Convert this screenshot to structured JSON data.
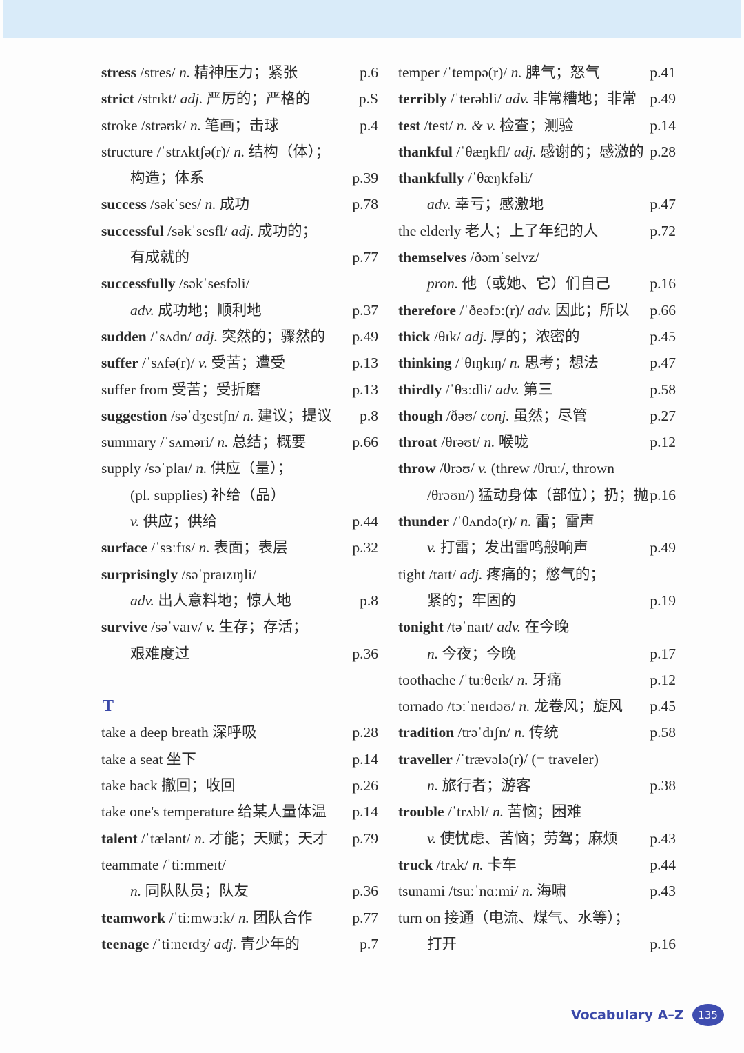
{
  "section_heading": "T",
  "footer": {
    "title": "Vocabulary A–Z",
    "page_number": "135"
  },
  "colors": {
    "accent": "#3a48a8",
    "header_band": "#d9ebf9"
  },
  "left_column": [
    {
      "w": "stress",
      "b": true,
      "ph": "/stres/",
      "pos": "n.",
      "d": "精神压力；紧张",
      "p": "p.6"
    },
    {
      "w": "strict",
      "b": true,
      "ph": "/strɪkt/",
      "pos": "adj.",
      "d": "严厉的；严格的",
      "p": "p.S"
    },
    {
      "w": "stroke",
      "ph": "/strəʊk/",
      "pos": "n.",
      "d": "笔画；击球",
      "p": "p.4"
    },
    {
      "w": "structure",
      "ph": "/ˈstrʌktʃə(r)/",
      "pos": "n.",
      "d": "结构（体）；"
    },
    {
      "ind": true,
      "d": "构造；体系",
      "p": "p.39"
    },
    {
      "w": "success",
      "b": true,
      "ph": "/səkˈses/",
      "pos": "n.",
      "d": "成功",
      "p": "p.78"
    },
    {
      "w": "successful",
      "b": true,
      "ph": "/səkˈsesfl/",
      "pos": "adj.",
      "d": "成功的；"
    },
    {
      "ind": true,
      "d": "有成就的",
      "p": "p.77"
    },
    {
      "w": "successfully",
      "b": true,
      "ph": "/səkˈsesfəli/"
    },
    {
      "ind": true,
      "pos": "adv.",
      "d": "成功地；顺利地",
      "p": "p.37"
    },
    {
      "w": "sudden",
      "b": true,
      "ph": "/ˈsʌdn/",
      "pos": "adj.",
      "d": "突然的；骤然的",
      "p": "p.49"
    },
    {
      "w": "suffer",
      "b": true,
      "ph": "/ˈsʌfə(r)/",
      "pos": "v.",
      "d": "受苦；遭受",
      "p": "p.13"
    },
    {
      "w": "suffer from",
      "d": "受苦；受折磨",
      "p": "p.13"
    },
    {
      "w": "suggestion",
      "b": true,
      "ph": "/səˈdʒestʃn/",
      "pos": "n.",
      "d": "建议；提议",
      "p": "p.8"
    },
    {
      "w": "summary",
      "ph": "/ˈsʌməri/",
      "pos": "n.",
      "d": "总结；概要",
      "p": "p.66"
    },
    {
      "w": "supply",
      "ph": "/səˈplaɪ/",
      "pos": "n.",
      "d": "供应（量）；"
    },
    {
      "ind": true,
      "d": "(pl. supplies) 补给（品）"
    },
    {
      "ind": true,
      "pos": "v.",
      "d": "供应；供给",
      "p": "p.44"
    },
    {
      "w": "surface",
      "b": true,
      "ph": "/ˈsɜːfɪs/",
      "pos": "n.",
      "d": "表面；表层",
      "p": "p.32"
    },
    {
      "w": "surprisingly",
      "b": true,
      "ph": "/səˈpraɪzɪŋli/"
    },
    {
      "ind": true,
      "pos": "adv.",
      "d": "出人意料地；惊人地",
      "p": "p.8"
    },
    {
      "w": "survive",
      "b": true,
      "ph": "/səˈvaɪv/",
      "pos": "v.",
      "d": "生存；存活；"
    },
    {
      "ind": true,
      "d": "艰难度过",
      "p": "p.36"
    },
    {
      "blank": true
    },
    {
      "heading": true
    },
    {
      "w": "take a deep breath",
      "d": "深呼吸",
      "p": "p.28"
    },
    {
      "w": "take a seat",
      "d": "坐下",
      "p": "p.14"
    },
    {
      "w": "take back",
      "d": "撤回；收回",
      "p": "p.26"
    },
    {
      "w": "take one's temperature",
      "d": "给某人量体温",
      "p": "p.14"
    },
    {
      "w": "talent",
      "b": true,
      "ph": "/ˈtælənt/",
      "pos": "n.",
      "d": "才能；天赋；天才",
      "p": "p.79"
    },
    {
      "w": "teammate",
      "ph": "/ˈtiːmmeɪt/"
    },
    {
      "ind": true,
      "pos": "n.",
      "d": "同队队员；队友",
      "p": "p.36"
    },
    {
      "w": "teamwork",
      "b": true,
      "ph": "/ˈtiːmwɜːk/",
      "pos": "n.",
      "d": "团队合作",
      "p": "p.77"
    },
    {
      "w": "teenage",
      "b": true,
      "ph": "/ˈtiːneɪdʒ/",
      "pos": "adj.",
      "d": "青少年的",
      "p": "p.7"
    }
  ],
  "right_column": [
    {
      "w": "temper",
      "ph": "/ˈtempə(r)/",
      "pos": "n.",
      "d": "脾气；怒气",
      "p": "p.41"
    },
    {
      "w": "terribly",
      "b": true,
      "ph": "/ˈterəbli/",
      "pos": "adv.",
      "d": "非常糟地；非常",
      "p": "p.49"
    },
    {
      "w": "test",
      "b": true,
      "ph": "/test/",
      "pos": "n. & v.",
      "d": "检查；测验",
      "p": "p.14"
    },
    {
      "w": "thankful",
      "b": true,
      "ph": "/ˈθæŋkfl/",
      "pos": "adj.",
      "d": "感谢的；感激的",
      "p": "p.28"
    },
    {
      "w": "thankfully",
      "b": true,
      "ph": "/ˈθæŋkfəli/"
    },
    {
      "ind": true,
      "pos": "adv.",
      "d": "幸亏；感激地",
      "p": "p.47"
    },
    {
      "w": "the elderly",
      "d": "老人；上了年纪的人",
      "p": "p.72"
    },
    {
      "w": "themselves",
      "b": true,
      "ph": "/ðəmˈselvz/"
    },
    {
      "ind": true,
      "pos": "pron.",
      "d": "他（或她、它）们自己",
      "p": "p.16"
    },
    {
      "w": "therefore",
      "b": true,
      "ph": "/ˈðeəfɔː(r)/",
      "pos": "adv.",
      "d": "因此；所以",
      "p": "p.66"
    },
    {
      "w": "thick",
      "b": true,
      "ph": "/θɪk/",
      "pos": "adj.",
      "d": "厚的；浓密的",
      "p": "p.45"
    },
    {
      "w": "thinking",
      "b": true,
      "ph": "/ˈθɪŋkɪŋ/",
      "pos": "n.",
      "d": "思考；想法",
      "p": "p.47"
    },
    {
      "w": "thirdly",
      "b": true,
      "ph": "/ˈθɜːdli/",
      "pos": "adv.",
      "d": "第三",
      "p": "p.58"
    },
    {
      "w": "though",
      "b": true,
      "ph": "/ðəʊ/",
      "pos": "conj.",
      "d": "虽然；尽管",
      "p": "p.27"
    },
    {
      "w": "throat",
      "b": true,
      "ph": "/θrəʊt/",
      "pos": "n.",
      "d": "喉咙",
      "p": "p.12"
    },
    {
      "w": "throw",
      "b": true,
      "ph": "/θrəʊ/",
      "pos": "v.",
      "d": "(threw /θruː/, thrown"
    },
    {
      "ind": true,
      "d": "/θrəʊn/) 猛动身体（部位）；扔；抛",
      "p": "p.16"
    },
    {
      "w": "thunder",
      "b": true,
      "ph": "/ˈθʌndə(r)/",
      "pos": "n.",
      "d": "雷；雷声"
    },
    {
      "ind": true,
      "pos": "v.",
      "d": "打雷；发出雷鸣般响声",
      "p": "p.49"
    },
    {
      "w": "tight",
      "ph": "/taɪt/",
      "pos": "adj.",
      "d": "疼痛的；憋气的；"
    },
    {
      "ind": true,
      "d": "紧的；牢固的",
      "p": "p.19"
    },
    {
      "w": "tonight",
      "b": true,
      "ph": "/təˈnaɪt/",
      "pos": "adv.",
      "d": "在今晚"
    },
    {
      "ind": true,
      "pos": "n.",
      "d": "今夜；今晚",
      "p": "p.17"
    },
    {
      "w": "toothache",
      "ph": "/ˈtuːθeɪk/",
      "pos": "n.",
      "d": "牙痛",
      "p": "p.12"
    },
    {
      "w": "tornado",
      "ph": "/tɔːˈneɪdəʊ/",
      "pos": "n.",
      "d": "龙卷风；旋风",
      "p": "p.45"
    },
    {
      "w": "tradition",
      "b": true,
      "ph": "/trəˈdɪʃn/",
      "pos": "n.",
      "d": "传统",
      "p": "p.58"
    },
    {
      "w": "traveller",
      "b": true,
      "ph": "/ˈtrævələ(r)/",
      "d": "(= traveler)"
    },
    {
      "ind": true,
      "pos": "n.",
      "d": "旅行者；游客",
      "p": "p.38"
    },
    {
      "w": "trouble",
      "b": true,
      "ph": "/ˈtrʌbl/",
      "pos": "n.",
      "d": "苦恼；困难"
    },
    {
      "ind": true,
      "pos": "v.",
      "d": "使忧虑、苦恼；劳驾；麻烦",
      "p": "p.43"
    },
    {
      "w": "truck",
      "b": true,
      "ph": "/trʌk/",
      "pos": "n.",
      "d": "卡车",
      "p": "p.44"
    },
    {
      "w": "tsunami",
      "ph": "/tsuːˈnɑːmi/",
      "pos": "n.",
      "d": "海啸",
      "p": "p.43"
    },
    {
      "w": "turn on",
      "d": "接通（电流、煤气、水等）；"
    },
    {
      "ind": true,
      "d": "打开",
      "p": "p.16"
    }
  ]
}
